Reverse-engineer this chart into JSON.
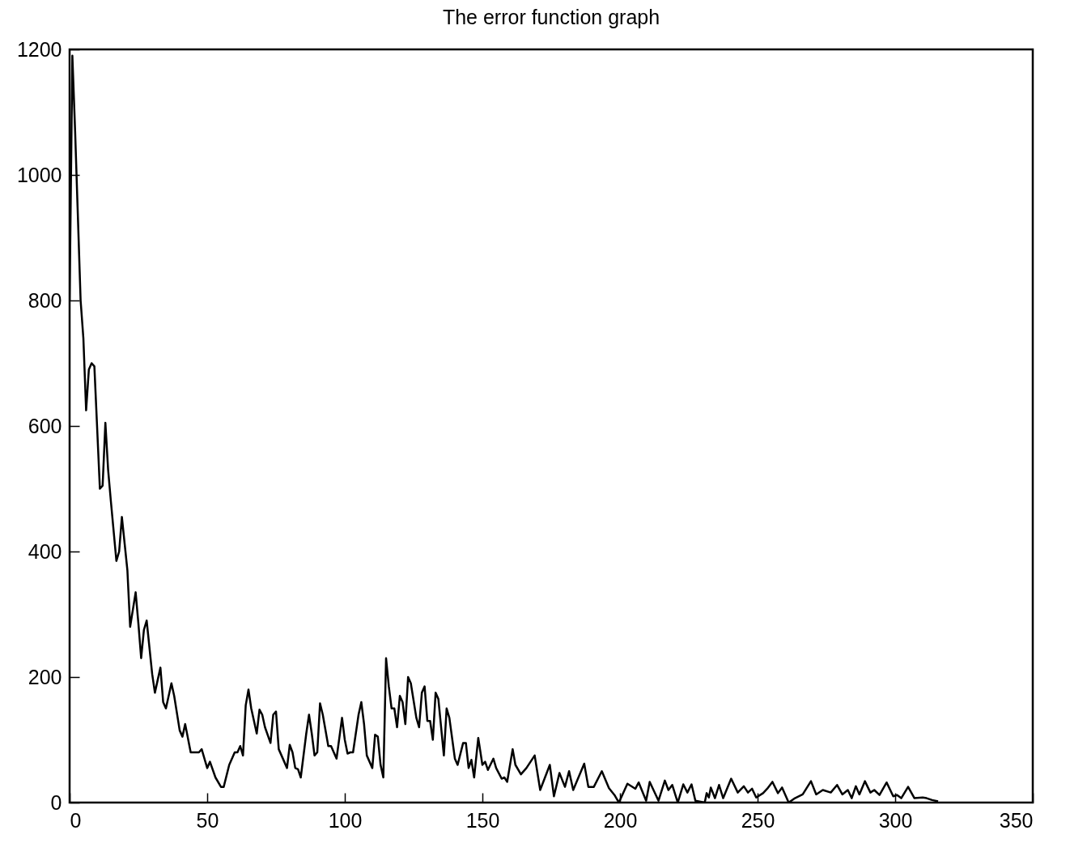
{
  "chart_data": {
    "type": "line",
    "title": "The error function graph",
    "x": [
      0,
      1,
      2,
      4,
      5,
      6,
      7,
      8,
      9,
      11,
      12,
      13,
      14,
      15,
      17,
      18,
      19,
      21,
      22,
      24,
      25,
      26,
      27,
      28,
      30,
      31,
      33,
      34,
      35,
      37,
      38,
      40,
      41,
      42,
      44,
      47,
      48,
      50,
      51,
      53,
      55,
      56,
      58,
      60,
      61,
      62,
      63,
      64,
      65,
      66,
      68,
      69,
      70,
      71,
      73,
      74,
      75,
      76,
      77,
      79,
      80,
      81,
      82,
      83,
      84,
      86,
      87,
      88,
      89,
      90,
      91,
      92,
      94,
      95,
      97,
      99,
      100,
      101,
      102,
      103,
      105,
      106,
      107,
      108,
      110,
      111,
      112,
      113,
      114,
      115,
      116,
      117,
      118,
      119,
      120,
      121,
      122,
      123,
      124,
      126,
      127,
      128,
      129,
      130,
      131,
      132,
      133,
      134,
      136,
      137,
      138,
      140,
      141,
      143,
      144,
      145,
      146,
      147,
      148.5,
      150,
      151,
      152,
      154,
      155,
      157,
      158,
      159,
      161,
      162,
      164,
      166,
      169,
      171,
      174.5,
      176,
      178,
      180,
      181.5,
      183,
      187,
      188.5,
      190.5,
      193.4,
      196,
      198,
      199.6,
      202.7,
      205.6,
      206.8,
      209.5,
      210.8,
      214,
      216.3,
      217.6,
      219,
      221,
      223,
      224.5,
      226,
      227.4,
      230.8,
      231.5,
      232.3,
      233,
      234.5,
      236,
      237.5,
      240.4,
      242.8,
      245,
      246.5,
      248,
      249.5,
      252,
      253.5,
      255.4,
      257.4,
      258.9,
      261.3,
      263.6,
      266.4,
      269.4,
      271.3,
      273.7,
      276.6,
      278.9,
      280.8,
      282.8,
      284.2,
      285.7,
      287,
      289,
      291,
      292.4,
      294.3,
      296.9,
      299.3,
      300.7,
      302.2,
      304.7,
      307,
      310,
      311.4,
      313.4,
      315.6
    ],
    "series": [
      {
        "color": "#000000",
        "values": [
          800,
          1190,
          1070,
          800,
          740,
          625,
          690,
          700,
          695,
          500,
          505,
          605,
          530,
          480,
          385,
          400,
          455,
          370,
          280,
          335,
          285,
          230,
          275,
          290,
          205,
          175,
          215,
          160,
          150,
          190,
          170,
          115,
          105,
          125,
          80,
          80,
          85,
          55,
          65,
          40,
          25,
          25,
          60,
          80,
          80,
          90,
          75,
          155,
          180,
          150,
          110,
          148,
          140,
          120,
          95,
          140,
          145,
          85,
          75,
          55,
          92,
          80,
          55,
          53,
          40,
          110,
          140,
          110,
          75,
          80,
          158,
          140,
          90,
          90,
          70,
          135,
          100,
          78,
          80,
          80,
          140,
          160,
          125,
          75,
          55,
          108,
          105,
          60,
          40,
          230,
          185,
          150,
          150,
          120,
          170,
          160,
          125,
          200,
          190,
          135,
          120,
          175,
          185,
          130,
          130,
          100,
          175,
          165,
          75,
          150,
          135,
          70,
          60,
          95,
          95,
          55,
          68,
          40,
          103,
          60,
          65,
          52,
          70,
          55,
          38,
          40,
          33,
          85,
          60,
          45,
          55,
          75,
          20,
          60,
          10,
          47,
          25,
          50,
          20,
          62,
          25,
          25,
          50,
          23,
          12,
          0,
          30,
          22,
          32,
          3,
          33,
          3,
          35,
          20,
          28,
          0,
          29,
          16,
          29,
          3,
          0,
          15,
          8,
          24,
          7,
          28,
          7,
          38,
          16,
          26,
          16,
          22,
          8,
          15,
          22,
          33,
          15,
          24,
          0,
          7,
          13,
          34,
          13,
          20,
          16,
          28,
          13,
          20,
          7,
          26,
          13,
          34,
          16,
          20,
          12,
          32,
          10,
          12,
          7,
          25,
          7,
          8,
          7,
          4,
          2
        ]
      }
    ],
    "xlim": [
      0,
      350
    ],
    "xticks": [
      0,
      50,
      100,
      150,
      200,
      250,
      300,
      350
    ],
    "ylim": [
      0,
      1200
    ],
    "yticks": [
      0,
      200,
      400,
      600,
      800,
      1000,
      1200
    ],
    "grid": false,
    "legend": false,
    "marker": "none",
    "line_style": "solid"
  }
}
